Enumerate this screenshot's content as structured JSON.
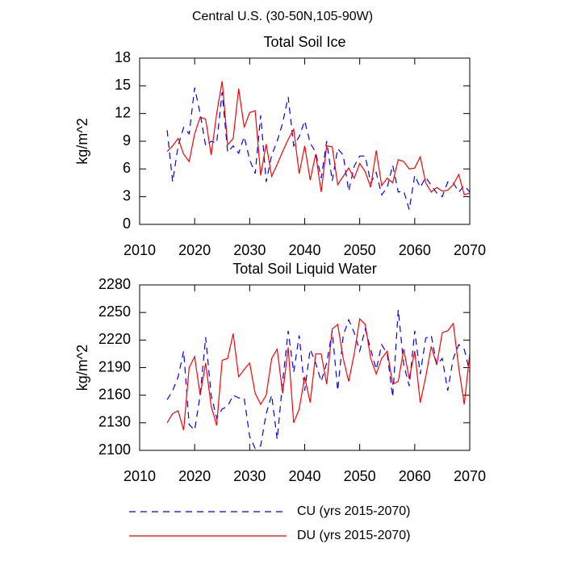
{
  "title": "Central U.S. (30-50N,105-90W)",
  "chart_data": [
    {
      "type": "line",
      "title": "Total Soil Ice",
      "ylabel": "kg/m^2",
      "x": [
        2015,
        2016,
        2017,
        2018,
        2019,
        2020,
        2021,
        2022,
        2023,
        2024,
        2025,
        2026,
        2027,
        2028,
        2029,
        2030,
        2031,
        2032,
        2033,
        2034,
        2035,
        2036,
        2037,
        2038,
        2039,
        2040,
        2041,
        2042,
        2043,
        2044,
        2045,
        2046,
        2047,
        2048,
        2049,
        2050,
        2051,
        2052,
        2053,
        2054,
        2055,
        2056,
        2057,
        2058,
        2059,
        2060,
        2061,
        2062,
        2063,
        2064,
        2065,
        2066,
        2067,
        2068,
        2069,
        2070
      ],
      "xlim": [
        2010,
        2070
      ],
      "xticks": [
        2010,
        2020,
        2030,
        2040,
        2050,
        2060,
        2070
      ],
      "ylim": [
        0,
        18
      ],
      "yticks": [
        0,
        3,
        6,
        9,
        12,
        15,
        18
      ],
      "series": [
        {
          "name": "CU (yrs 2015-2070)",
          "color": "#0000ff",
          "dash": "dashed",
          "values": [
            10.2,
            4.6,
            8.5,
            10.5,
            9.8,
            14.8,
            12,
            8.5,
            9,
            8.8,
            14.3,
            7.8,
            8.5,
            7.7,
            9.5,
            7,
            5.5,
            11.8,
            4.6,
            7.5,
            9,
            11,
            13.8,
            8.5,
            9.5,
            11.2,
            8.8,
            7.8,
            5,
            9,
            4.7,
            8.2,
            7.5,
            3.6,
            6.3,
            7.4,
            7.4,
            4.5,
            5.6,
            3.2,
            4,
            6.4,
            3.5,
            3.6,
            1.6,
            5.3,
            4,
            5.1,
            4.2,
            3.4,
            3,
            4.6,
            4.5,
            3.5,
            4.2,
            3.5
          ]
        },
        {
          "name": "DU (yrs 2015-2070)",
          "color": "#ff0000",
          "dash": "solid",
          "values": [
            7.9,
            8.5,
            9.3,
            7.6,
            6.8,
            9.8,
            11.6,
            11.4,
            7.5,
            12,
            15.5,
            8.6,
            9.3,
            14.7,
            10.5,
            12.1,
            12.3,
            5.3,
            8.7,
            5.2,
            6.5,
            7.9,
            9.2,
            10.3,
            5.5,
            8.5,
            4.8,
            7.6,
            3.5,
            8.5,
            8.4,
            4.3,
            5.2,
            6.1,
            5,
            6.6,
            5.7,
            4,
            8,
            4.2,
            5,
            4.5,
            7,
            6.8,
            6,
            6.1,
            7.3,
            4.5,
            3.5,
            4,
            3.6,
            3.7,
            4.3,
            5.4,
            3.2,
            3.4
          ]
        }
      ]
    },
    {
      "type": "line",
      "title": "Total Soil Liquid Water",
      "ylabel": "kg/m^2",
      "x": [
        2015,
        2016,
        2017,
        2018,
        2019,
        2020,
        2021,
        2022,
        2023,
        2024,
        2025,
        2026,
        2027,
        2028,
        2029,
        2030,
        2031,
        2032,
        2033,
        2034,
        2035,
        2036,
        2037,
        2038,
        2039,
        2040,
        2041,
        2042,
        2043,
        2044,
        2045,
        2046,
        2047,
        2048,
        2049,
        2050,
        2051,
        2052,
        2053,
        2054,
        2055,
        2056,
        2057,
        2058,
        2059,
        2060,
        2061,
        2062,
        2063,
        2064,
        2065,
        2066,
        2067,
        2068,
        2069,
        2070
      ],
      "xlim": [
        2010,
        2070
      ],
      "xticks": [
        2010,
        2020,
        2030,
        2040,
        2050,
        2060,
        2070
      ],
      "ylim": [
        2100,
        2280
      ],
      "yticks": [
        2100,
        2130,
        2160,
        2190,
        2220,
        2250,
        2280
      ],
      "series": [
        {
          "name": "CU (yrs 2015-2070)",
          "color": "#0000ff",
          "dash": "dashed",
          "values": [
            2155,
            2165,
            2180,
            2208,
            2128,
            2122,
            2160,
            2223,
            2160,
            2135,
            2145,
            2148,
            2160,
            2157,
            2157,
            2115,
            2102,
            2105,
            2140,
            2160,
            2112,
            2175,
            2230,
            2185,
            2225,
            2165,
            2210,
            2195,
            2175,
            2195,
            2230,
            2165,
            2225,
            2242,
            2228,
            2208,
            2232,
            2210,
            2188,
            2215,
            2205,
            2158,
            2253,
            2193,
            2170,
            2230,
            2183,
            2222,
            2225,
            2193,
            2200,
            2165,
            2200,
            2215,
            2210,
            2185
          ]
        },
        {
          "name": "DU (yrs 2015-2070)",
          "color": "#ff0000",
          "dash": "solid",
          "values": [
            2130,
            2140,
            2143,
            2122,
            2190,
            2202,
            2160,
            2195,
            2148,
            2127,
            2198,
            2200,
            2227,
            2180,
            2188,
            2195,
            2162,
            2150,
            2160,
            2200,
            2210,
            2162,
            2212,
            2130,
            2145,
            2180,
            2152,
            2205,
            2205,
            2172,
            2232,
            2237,
            2200,
            2175,
            2205,
            2243,
            2237,
            2200,
            2183,
            2200,
            2208,
            2172,
            2175,
            2210,
            2178,
            2208,
            2152,
            2180,
            2213,
            2193,
            2228,
            2230,
            2238,
            2190,
            2150,
            2205
          ]
        }
      ]
    }
  ]
}
